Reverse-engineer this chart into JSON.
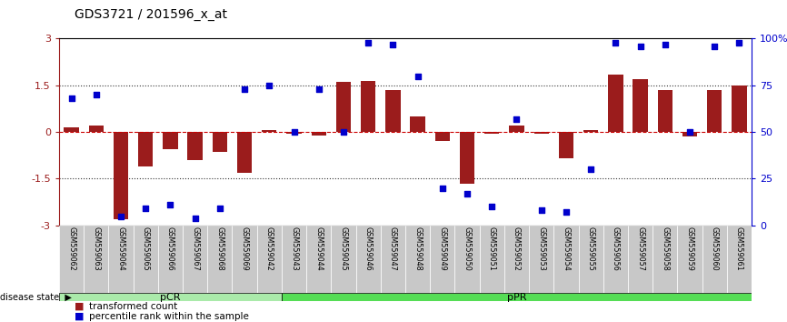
{
  "title": "GDS3721 / 201596_x_at",
  "samples": [
    "GSM559062",
    "GSM559063",
    "GSM559064",
    "GSM559065",
    "GSM559066",
    "GSM559067",
    "GSM559068",
    "GSM559069",
    "GSM559042",
    "GSM559043",
    "GSM559044",
    "GSM559045",
    "GSM559046",
    "GSM559047",
    "GSM559048",
    "GSM559049",
    "GSM559050",
    "GSM559051",
    "GSM559052",
    "GSM559053",
    "GSM559054",
    "GSM559055",
    "GSM559056",
    "GSM559057",
    "GSM559058",
    "GSM559059",
    "GSM559060",
    "GSM559061"
  ],
  "transformed_count": [
    0.15,
    0.2,
    -2.8,
    -1.1,
    -0.55,
    -0.9,
    -0.65,
    -1.3,
    0.05,
    -0.05,
    -0.1,
    1.62,
    1.65,
    1.35,
    0.5,
    -0.3,
    -1.65,
    -0.05,
    0.2,
    -0.05,
    -0.85,
    0.05,
    1.85,
    1.7,
    1.35,
    -0.15,
    1.35,
    1.5
  ],
  "percentile_rank": [
    68,
    70,
    5,
    9,
    11,
    4,
    9,
    73,
    75,
    50,
    73,
    50,
    98,
    97,
    80,
    20,
    17,
    10,
    57,
    8,
    7,
    30,
    98,
    96,
    97,
    50,
    96,
    98
  ],
  "pcr_count": 9,
  "ppr_count": 19,
  "bar_color": "#9B1C1C",
  "dot_color": "#0000CC",
  "pcr_color": "#AAEAAA",
  "ppr_color": "#55DD55",
  "bg_color": "#FFFFFF",
  "label_bg_color": "#C8C8C8",
  "dotted_line_color": "#333333",
  "zero_line_color": "#CC0000",
  "ylim": [
    -3,
    3
  ],
  "y2lim": [
    0,
    100
  ],
  "yticks": [
    -3,
    -1.5,
    0,
    1.5,
    3
  ],
  "y2ticks": [
    0,
    25,
    50,
    75,
    100
  ],
  "legend_items": [
    "transformed count",
    "percentile rank within the sample"
  ]
}
